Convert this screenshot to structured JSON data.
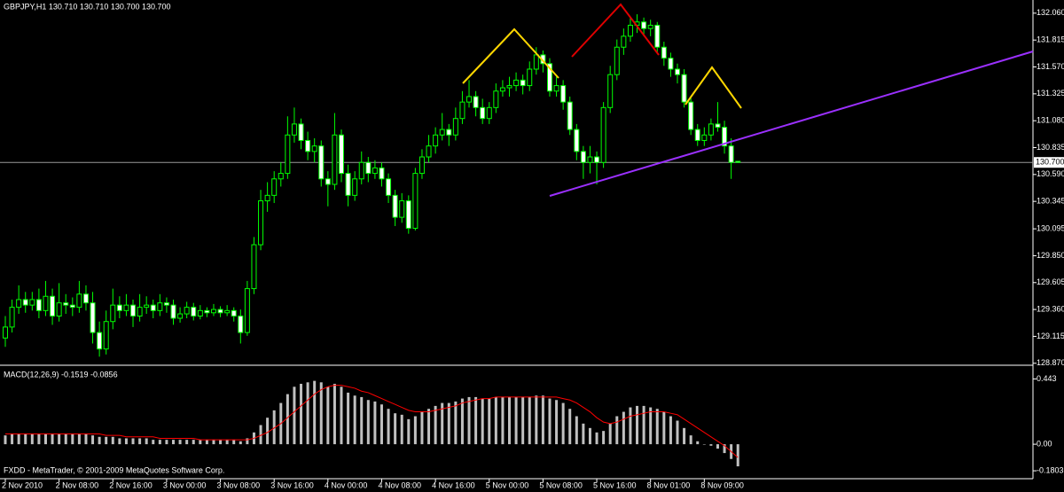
{
  "chart_data": [
    {
      "type": "candlestick",
      "title": "GBPJPY,H1  130.710 130.710 130.700 130.700",
      "categories": [
        "2 Nov 2010",
        null,
        null,
        null,
        null,
        null,
        null,
        null,
        "2 Nov 08:00",
        null,
        null,
        null,
        null,
        null,
        null,
        null,
        "2 Nov 16:00",
        null,
        null,
        null,
        null,
        null,
        null,
        null,
        "3 Nov 00:00",
        null,
        null,
        null,
        null,
        null,
        null,
        null,
        "3 Nov 08:00",
        null,
        null,
        null,
        null,
        null,
        null,
        null,
        "3 Nov 16:00",
        null,
        null,
        null,
        null,
        null,
        null,
        null,
        "4 Nov 00:00",
        null,
        null,
        null,
        null,
        null,
        null,
        null,
        "4 Nov 08:00",
        null,
        null,
        null,
        null,
        null,
        null,
        null,
        "4 Nov 16:00",
        null,
        null,
        null,
        null,
        null,
        null,
        null,
        "5 Nov 00:00",
        null,
        null,
        null,
        null,
        null,
        null,
        null,
        "5 Nov 08:00",
        null,
        null,
        null,
        null,
        null,
        null,
        null,
        "5 Nov 16:00",
        null,
        null,
        null,
        null,
        null,
        null,
        null,
        "8 Nov 01:00",
        null,
        null,
        null,
        null,
        null,
        null,
        null,
        "8 Nov 09:00",
        null,
        null,
        null,
        null,
        null
      ],
      "ohlc": [
        [
          129.1,
          129.3,
          129.02,
          129.2
        ],
        [
          129.2,
          129.45,
          129.15,
          129.38
        ],
        [
          129.38,
          129.58,
          129.32,
          129.45
        ],
        [
          129.45,
          129.52,
          129.33,
          129.4
        ],
        [
          129.4,
          129.52,
          129.35,
          129.45
        ],
        [
          129.45,
          129.55,
          129.28,
          129.35
        ],
        [
          129.35,
          129.62,
          129.3,
          129.48
        ],
        [
          129.48,
          129.55,
          129.22,
          129.3
        ],
        [
          129.3,
          129.6,
          129.25,
          129.42
        ],
        [
          129.42,
          129.5,
          129.32,
          129.4
        ],
        [
          129.4,
          129.47,
          129.3,
          129.38
        ],
        [
          129.38,
          129.62,
          129.33,
          129.5
        ],
        [
          129.5,
          129.58,
          129.35,
          129.42
        ],
        [
          129.42,
          129.52,
          129.05,
          129.15
        ],
        [
          129.15,
          129.25,
          128.93,
          129.0
        ],
        [
          129.0,
          129.35,
          128.95,
          129.25
        ],
        [
          129.25,
          129.55,
          129.18,
          129.4
        ],
        [
          129.4,
          129.48,
          129.28,
          129.35
        ],
        [
          129.35,
          129.5,
          129.3,
          129.4
        ],
        [
          129.4,
          129.45,
          129.2,
          129.3
        ],
        [
          129.3,
          129.5,
          129.25,
          129.38
        ],
        [
          129.38,
          129.48,
          129.32,
          129.4
        ],
        [
          129.4,
          129.45,
          129.28,
          129.35
        ],
        [
          129.35,
          129.5,
          129.3,
          129.42
        ],
        [
          129.42,
          129.47,
          129.33,
          129.4
        ],
        [
          129.4,
          129.45,
          129.22,
          129.28
        ],
        [
          129.28,
          129.38,
          129.24,
          129.32
        ],
        [
          129.32,
          129.43,
          129.28,
          129.38
        ],
        [
          129.38,
          129.42,
          129.26,
          129.3
        ],
        [
          129.3,
          129.4,
          129.27,
          129.35
        ],
        [
          129.35,
          129.38,
          129.29,
          129.33
        ],
        [
          129.33,
          129.41,
          129.3,
          129.36
        ],
        [
          129.36,
          129.39,
          129.29,
          129.33
        ],
        [
          129.33,
          129.4,
          129.3,
          129.35
        ],
        [
          129.35,
          129.38,
          129.25,
          129.3
        ],
        [
          129.3,
          129.36,
          129.05,
          129.15
        ],
        [
          129.15,
          129.62,
          129.12,
          129.55
        ],
        [
          129.55,
          130.02,
          129.5,
          129.95
        ],
        [
          129.95,
          130.45,
          129.9,
          130.35
        ],
        [
          130.35,
          130.52,
          130.25,
          130.4
        ],
        [
          130.4,
          130.62,
          130.33,
          130.55
        ],
        [
          130.55,
          130.7,
          130.48,
          130.6
        ],
        [
          130.6,
          131.12,
          130.55,
          130.95
        ],
        [
          130.95,
          131.2,
          130.88,
          131.05
        ],
        [
          131.05,
          131.1,
          130.82,
          130.9
        ],
        [
          130.9,
          130.98,
          130.72,
          130.8
        ],
        [
          130.8,
          130.92,
          130.7,
          130.85
        ],
        [
          130.85,
          130.9,
          130.48,
          130.55
        ],
        [
          130.55,
          130.62,
          130.3,
          130.5
        ],
        [
          130.5,
          131.15,
          130.45,
          130.95
        ],
        [
          130.95,
          131.0,
          130.52,
          130.6
        ],
        [
          130.6,
          130.68,
          130.3,
          130.4
        ],
        [
          130.4,
          130.62,
          130.35,
          130.55
        ],
        [
          130.55,
          130.8,
          130.5,
          130.7
        ],
        [
          130.7,
          130.75,
          130.52,
          130.6
        ],
        [
          130.6,
          130.72,
          130.55,
          130.65
        ],
        [
          130.65,
          130.7,
          130.48,
          130.55
        ],
        [
          130.55,
          130.6,
          130.33,
          130.4
        ],
        [
          130.4,
          130.45,
          130.12,
          130.2
        ],
        [
          130.2,
          130.42,
          130.15,
          130.35
        ],
        [
          130.35,
          130.4,
          130.05,
          130.1
        ],
        [
          130.1,
          130.65,
          130.08,
          130.6
        ],
        [
          130.6,
          130.82,
          130.55,
          130.75
        ],
        [
          130.75,
          130.95,
          130.7,
          130.85
        ],
        [
          130.85,
          131.02,
          130.78,
          130.95
        ],
        [
          130.95,
          131.15,
          130.9,
          131.0
        ],
        [
          131.0,
          131.05,
          130.85,
          130.95
        ],
        [
          130.95,
          131.2,
          130.9,
          131.1
        ],
        [
          131.1,
          131.35,
          131.05,
          131.25
        ],
        [
          131.25,
          131.45,
          131.2,
          131.3
        ],
        [
          131.3,
          131.35,
          131.12,
          131.2
        ],
        [
          131.2,
          131.28,
          131.05,
          131.1
        ],
        [
          131.1,
          131.25,
          131.05,
          131.2
        ],
        [
          131.2,
          131.42,
          131.15,
          131.35
        ],
        [
          131.35,
          131.45,
          131.3,
          131.38
        ],
        [
          131.38,
          131.48,
          131.3,
          131.4
        ],
        [
          131.4,
          131.52,
          131.35,
          131.45
        ],
        [
          131.45,
          131.5,
          131.32,
          131.4
        ],
        [
          131.4,
          131.62,
          131.35,
          131.55
        ],
        [
          131.55,
          131.75,
          131.5,
          131.68
        ],
        [
          131.68,
          131.72,
          131.52,
          131.6
        ],
        [
          131.6,
          131.65,
          131.3,
          131.35
        ],
        [
          131.35,
          131.48,
          131.3,
          131.4
        ],
        [
          131.4,
          131.45,
          131.18,
          131.25
        ],
        [
          131.25,
          131.3,
          130.95,
          131.0
        ],
        [
          131.0,
          131.05,
          130.72,
          130.8
        ],
        [
          130.8,
          130.85,
          130.55,
          130.7
        ],
        [
          130.7,
          130.85,
          130.6,
          130.75
        ],
        [
          130.75,
          130.8,
          130.5,
          130.7
        ],
        [
          130.7,
          131.25,
          130.65,
          131.2
        ],
        [
          131.2,
          131.58,
          131.15,
          131.5
        ],
        [
          131.5,
          131.82,
          131.45,
          131.75
        ],
        [
          131.75,
          131.92,
          131.68,
          131.85
        ],
        [
          131.85,
          132.02,
          131.8,
          131.95
        ],
        [
          131.95,
          132.05,
          131.88,
          131.98
        ],
        [
          131.98,
          132.02,
          131.85,
          131.92
        ],
        [
          131.92,
          132.0,
          131.85,
          131.95
        ],
        [
          131.95,
          131.98,
          131.7,
          131.75
        ],
        [
          131.75,
          131.8,
          131.58,
          131.65
        ],
        [
          131.65,
          131.7,
          131.48,
          131.55
        ],
        [
          131.55,
          131.6,
          131.42,
          131.5
        ],
        [
          131.5,
          131.55,
          131.2,
          131.25
        ],
        [
          131.25,
          131.3,
          130.95,
          131.0
        ],
        [
          131.0,
          131.05,
          130.85,
          130.9
        ],
        [
          130.9,
          131.02,
          130.85,
          130.95
        ],
        [
          130.95,
          131.1,
          130.9,
          131.05
        ],
        [
          131.05,
          131.25,
          130.98,
          131.02
        ],
        [
          131.02,
          131.08,
          130.78,
          130.85
        ],
        [
          130.85,
          130.92,
          130.55,
          130.7
        ],
        [
          130.71,
          130.71,
          130.7,
          130.7
        ]
      ],
      "wick_color": "#00ff00",
      "up_fill": "#000000",
      "down_fill": "#ffffff",
      "ylim": [
        128.86,
        132.18
      ],
      "yticks": [
        {
          "value": 132.06,
          "label": "132.060"
        },
        {
          "value": 131.815,
          "label": "131.815"
        },
        {
          "value": 131.57,
          "label": "131.570"
        },
        {
          "value": 131.325,
          "label": "131.325"
        },
        {
          "value": 131.08,
          "label": "131.080"
        },
        {
          "value": 130.835,
          "label": "130.835"
        },
        {
          "value": 130.59,
          "label": "130.590"
        },
        {
          "value": 130.345,
          "label": "130.345"
        },
        {
          "value": 130.095,
          "label": "130.095"
        },
        {
          "value": 129.85,
          "label": "129.850"
        },
        {
          "value": 129.605,
          "label": "129.605"
        },
        {
          "value": 129.36,
          "label": "129.360"
        },
        {
          "value": 129.115,
          "label": "129.115"
        },
        {
          "value": 128.87,
          "label": "128.870"
        }
      ],
      "bid_line": {
        "value": 130.7,
        "label": "130.700"
      }
    },
    {
      "type": "macd",
      "title": "MACD(12,26,9) -0.1519 -0.0856",
      "histogram": {
        "color": "#c0c0c0",
        "values": [
          0.06,
          0.07,
          0.07,
          0.07,
          0.07,
          0.07,
          0.07,
          0.07,
          0.07,
          0.07,
          0.07,
          0.07,
          0.07,
          0.06,
          0.05,
          0.05,
          0.05,
          0.04,
          0.04,
          0.04,
          0.04,
          0.04,
          0.03,
          0.03,
          0.03,
          0.03,
          0.03,
          0.03,
          0.03,
          0.03,
          0.03,
          0.03,
          0.03,
          0.03,
          0.03,
          0.02,
          0.04,
          0.08,
          0.13,
          0.18,
          0.23,
          0.28,
          0.34,
          0.39,
          0.41,
          0.42,
          0.43,
          0.42,
          0.39,
          0.41,
          0.39,
          0.35,
          0.33,
          0.32,
          0.3,
          0.29,
          0.27,
          0.24,
          0.21,
          0.2,
          0.17,
          0.19,
          0.22,
          0.24,
          0.26,
          0.28,
          0.28,
          0.29,
          0.31,
          0.32,
          0.32,
          0.31,
          0.31,
          0.32,
          0.32,
          0.32,
          0.32,
          0.32,
          0.32,
          0.33,
          0.33,
          0.31,
          0.3,
          0.28,
          0.24,
          0.19,
          0.14,
          0.11,
          0.08,
          0.09,
          0.14,
          0.19,
          0.22,
          0.25,
          0.26,
          0.26,
          0.25,
          0.24,
          0.22,
          0.19,
          0.16,
          0.11,
          0.06,
          0.02,
          0.0,
          -0.01,
          -0.03,
          -0.06,
          -0.1,
          -0.15
        ]
      },
      "signal": {
        "color": "#ff0000",
        "values": [
          0.07,
          0.07,
          0.07,
          0.07,
          0.07,
          0.07,
          0.07,
          0.07,
          0.07,
          0.07,
          0.07,
          0.07,
          0.07,
          0.07,
          0.07,
          0.06,
          0.06,
          0.06,
          0.05,
          0.05,
          0.05,
          0.05,
          0.05,
          0.04,
          0.04,
          0.04,
          0.04,
          0.04,
          0.04,
          0.03,
          0.03,
          0.03,
          0.03,
          0.03,
          0.03,
          0.03,
          0.03,
          0.04,
          0.06,
          0.08,
          0.11,
          0.14,
          0.18,
          0.22,
          0.26,
          0.3,
          0.34,
          0.37,
          0.39,
          0.4,
          0.4,
          0.39,
          0.38,
          0.36,
          0.35,
          0.33,
          0.31,
          0.29,
          0.27,
          0.25,
          0.23,
          0.22,
          0.22,
          0.22,
          0.23,
          0.24,
          0.25,
          0.26,
          0.28,
          0.29,
          0.3,
          0.31,
          0.31,
          0.32,
          0.32,
          0.32,
          0.32,
          0.32,
          0.32,
          0.32,
          0.32,
          0.32,
          0.32,
          0.31,
          0.3,
          0.28,
          0.25,
          0.22,
          0.18,
          0.15,
          0.14,
          0.15,
          0.17,
          0.19,
          0.2,
          0.21,
          0.22,
          0.22,
          0.22,
          0.21,
          0.2,
          0.17,
          0.14,
          0.11,
          0.08,
          0.05,
          0.02,
          -0.01,
          -0.05,
          -0.09
        ]
      },
      "ylim": [
        -0.234,
        0.512
      ],
      "yticks": [
        0.443,
        {
          "value": 0,
          "label": "0.00"
        },
        -0.1803
      ]
    }
  ],
  "watermark": "FXDD - MetaTrader, © 2001-2009 MetaQuotes Software Corp."
}
